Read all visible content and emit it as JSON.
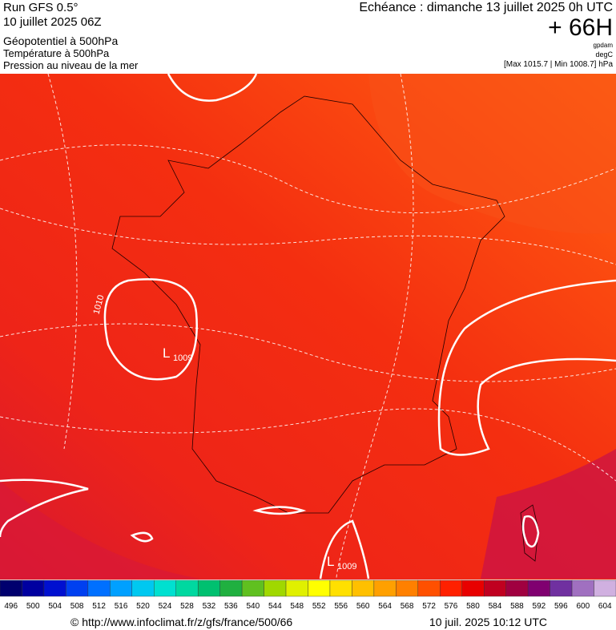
{
  "header": {
    "title": "Run GFS 0.5°",
    "run": "10 juillet 2025 06Z",
    "fields": [
      "Géopotentiel à 500hPa",
      "Température à 500hPa",
      "Pression au niveau de la mer"
    ],
    "valid": "Echéance : dimanche 13 juillet 2025 0h UTC",
    "lead": "+ 66H",
    "units": [
      "gpdam",
      "degC",
      "[Max 1015.7 | Min 1008.7] hPa"
    ]
  },
  "map": {
    "labels": [
      {
        "text": "1010"
      },
      {
        "low": "L",
        "value": "1009"
      },
      {
        "low": "L",
        "value": "1009"
      }
    ]
  },
  "colorbar": {
    "labels": [
      496,
      500,
      504,
      508,
      512,
      516,
      520,
      524,
      528,
      532,
      536,
      540,
      544,
      548,
      552,
      556,
      560,
      564,
      568,
      572,
      576,
      580,
      584,
      588,
      592,
      596,
      600,
      604
    ],
    "colors": [
      "#00006e",
      "#0000a0",
      "#0010d0",
      "#0040f0",
      "#0070ff",
      "#00a0ff",
      "#00c8f0",
      "#00e0d0",
      "#00d8a0",
      "#00c070",
      "#20b040",
      "#60c020",
      "#a0d800",
      "#e0f000",
      "#ffff00",
      "#ffe000",
      "#ffc000",
      "#ffa000",
      "#ff8000",
      "#ff5000",
      "#ff2000",
      "#e80000",
      "#c00020",
      "#a00040",
      "#800070",
      "#7030a0",
      "#a070c0",
      "#d0b0e0"
    ]
  },
  "footer": {
    "source": "© http://www.infoclimat.fr/z/gfs/france/500/66",
    "date": "10 juil. 2025 10:12 UTC"
  }
}
